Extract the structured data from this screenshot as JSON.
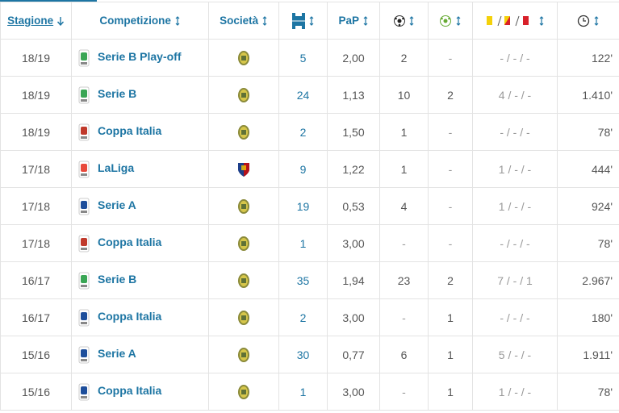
{
  "table": {
    "header": {
      "season": "Stagione",
      "competition": "Competizione",
      "club": "Società",
      "points_per_game": "PaP"
    },
    "rows": [
      [
        "18/19",
        "Serie B Play-off",
        "5",
        "2,00",
        "2",
        "-",
        "- / - / -",
        "122'"
      ],
      [
        "18/19",
        "Serie B",
        "24",
        "1,13",
        "10",
        "2",
        "4 / - / -",
        "1.410'"
      ],
      [
        "18/19",
        "Coppa Italia",
        "2",
        "1,50",
        "1",
        "-",
        "- / - / -",
        "78'"
      ],
      [
        "17/18",
        "LaLiga",
        "9",
        "1,22",
        "1",
        "-",
        "1 / - / -",
        "444'"
      ],
      [
        "17/18",
        "Serie A",
        "19",
        "0,53",
        "4",
        "-",
        "1 / - / -",
        "924'"
      ],
      [
        "17/18",
        "Coppa Italia",
        "1",
        "3,00",
        "-",
        "-",
        "- / - / -",
        "78'"
      ],
      [
        "16/17",
        "Serie B",
        "35",
        "1,94",
        "23",
        "2",
        "7 / - / 1",
        "2.967'"
      ],
      [
        "16/17",
        "Coppa Italia",
        "2",
        "3,00",
        "-",
        "1",
        "- / - / -",
        "180'"
      ],
      [
        "15/16",
        "Serie A",
        "30",
        "0,77",
        "6",
        "1",
        "5 / - / -",
        "1.911'"
      ],
      [
        "15/16",
        "Coppa Italia",
        "1",
        "3,00",
        "-",
        "1",
        "1 / - / -",
        "78'"
      ]
    ]
  }
}
